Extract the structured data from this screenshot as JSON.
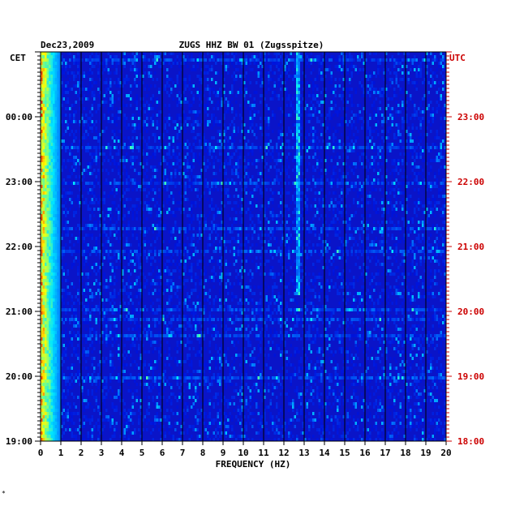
{
  "header": {
    "date": "Dec23,2009",
    "station": "ZUGS HHZ BW 01 (Zugsspitze)"
  },
  "axes": {
    "left_zone_label": "CET",
    "right_zone_label": "UTC",
    "xlabel": "FREQUENCY (HZ)",
    "x_ticks": [
      "0",
      "1",
      "2",
      "3",
      "4",
      "5",
      "6",
      "7",
      "8",
      "9",
      "10",
      "11",
      "12",
      "13",
      "14",
      "15",
      "16",
      "17",
      "18",
      "19",
      "20"
    ],
    "cet_ticks": [
      "00:00",
      "23:00",
      "22:00",
      "21:00",
      "20:00",
      "19:00"
    ],
    "utc_ticks": [
      "23:00",
      "22:00",
      "21:00",
      "20:00",
      "19:00",
      "18:00"
    ]
  },
  "footer_mark": "*",
  "colors": {
    "left_label": "#000000",
    "right_label": "#cc0000",
    "background_blue": "#0a14c8"
  },
  "chart_data": {
    "type": "heatmap",
    "title": "ZUGS HHZ BW 01 (Zugsspitze)",
    "date": "Dec23,2009",
    "xlabel": "FREQUENCY (HZ)",
    "xlim": [
      0,
      20
    ],
    "x_tick_values": [
      0,
      1,
      2,
      3,
      4,
      5,
      6,
      7,
      8,
      9,
      10,
      11,
      12,
      13,
      14,
      15,
      16,
      17,
      18,
      19,
      20
    ],
    "ylim_utc": [
      "18:00",
      "24:00"
    ],
    "y_ticks_cet": [
      "00:00",
      "23:00",
      "22:00",
      "21:00",
      "20:00",
      "19:00"
    ],
    "y_ticks_utc": [
      "23:00",
      "22:00",
      "21:00",
      "20:00",
      "19:00",
      "18:00"
    ],
    "grid": true,
    "features": {
      "low_frequency_band_hz": [
        0,
        1
      ],
      "narrow_line_hz": 12.7
    }
  }
}
